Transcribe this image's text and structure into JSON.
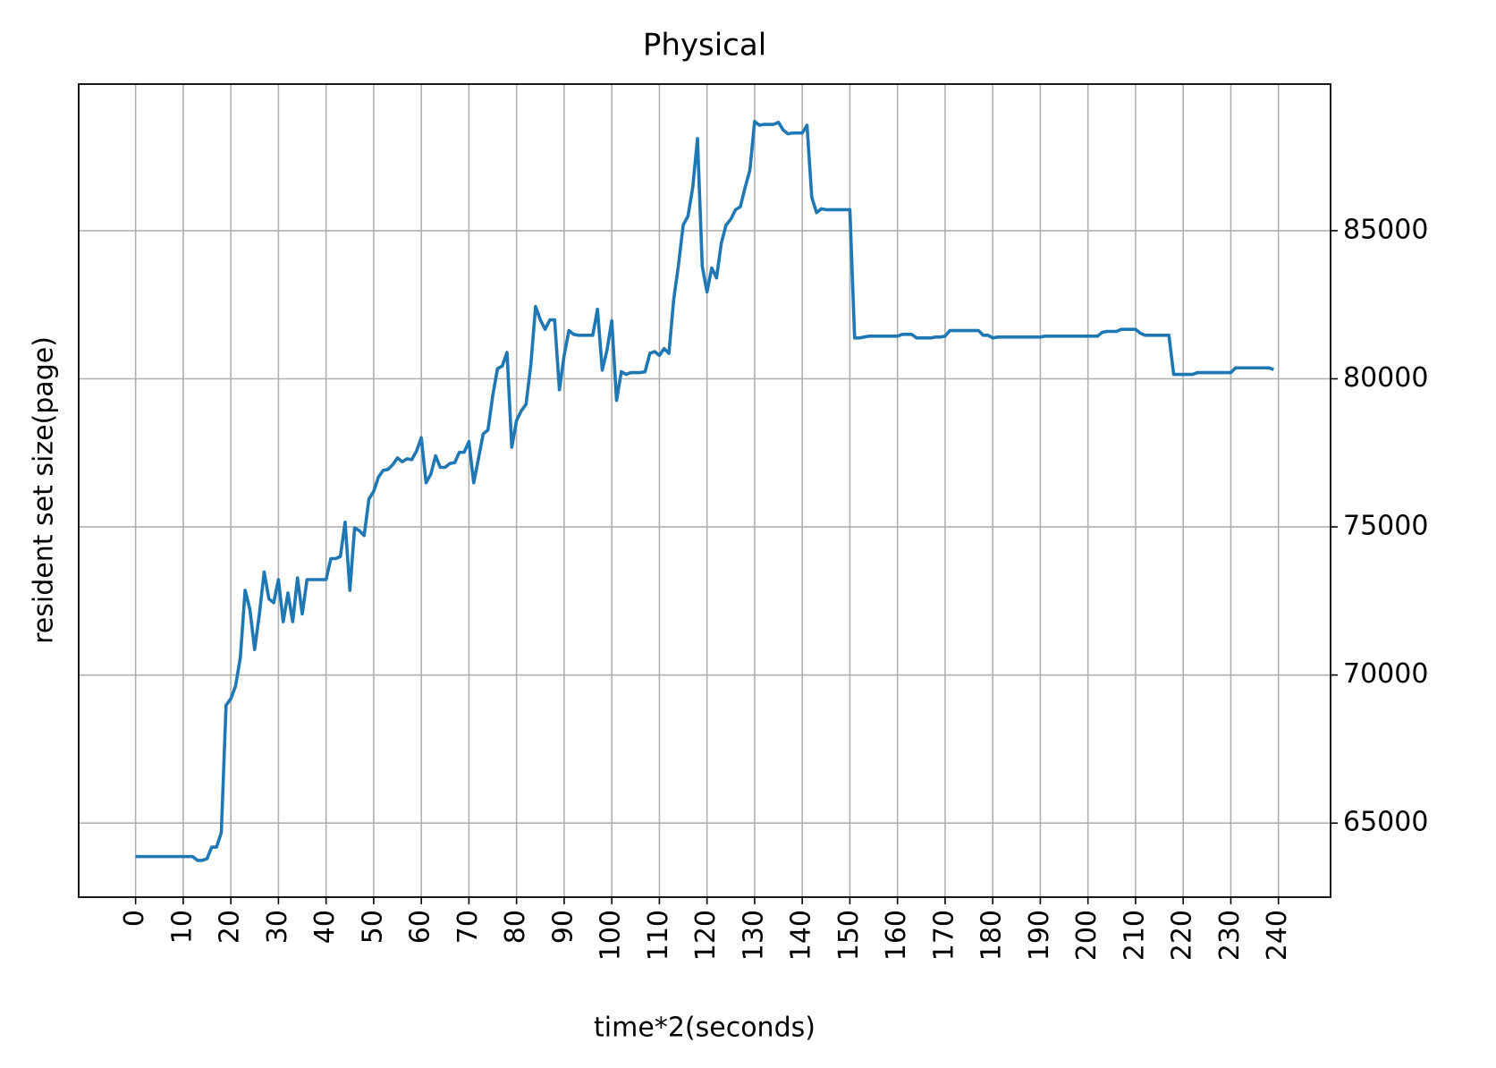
{
  "chart_data": {
    "type": "line",
    "title": "Physical",
    "x_label": "time*2(seconds)",
    "y_label": "resident set size(page)",
    "x": [
      0,
      1,
      2,
      3,
      4,
      5,
      6,
      7,
      8,
      9,
      10,
      11,
      12,
      13,
      14,
      15,
      16,
      17,
      18,
      19,
      20,
      21,
      22,
      23,
      24,
      25,
      26,
      27,
      28,
      29,
      30,
      31,
      32,
      33,
      34,
      35,
      36,
      37,
      38,
      39,
      40,
      41,
      42,
      43,
      44,
      45,
      46,
      47,
      48,
      49,
      50,
      51,
      52,
      53,
      54,
      55,
      56,
      57,
      58,
      59,
      60,
      61,
      62,
      63,
      64,
      65,
      66,
      67,
      68,
      69,
      70,
      71,
      72,
      73,
      74,
      75,
      76,
      77,
      78,
      79,
      80,
      81,
      82,
      83,
      84,
      85,
      86,
      87,
      88,
      89,
      90,
      91,
      92,
      93,
      94,
      95,
      96,
      97,
      98,
      99,
      100,
      101,
      102,
      103,
      104,
      105,
      106,
      107,
      108,
      109,
      110,
      111,
      112,
      113,
      114,
      115,
      116,
      117,
      118,
      119,
      120,
      121,
      122,
      123,
      124,
      125,
      126,
      127,
      128,
      129,
      130,
      131,
      132,
      133,
      134,
      135,
      136,
      137,
      138,
      139,
      140,
      141,
      142,
      143,
      144,
      145,
      146,
      147,
      148,
      149,
      150,
      151,
      152,
      153,
      154,
      155,
      156,
      157,
      158,
      159,
      160,
      161,
      162,
      163,
      164,
      165,
      166,
      167,
      168,
      169,
      170,
      171,
      172,
      173,
      174,
      175,
      176,
      177,
      178,
      179,
      180,
      181,
      182,
      183,
      184,
      185,
      186,
      187,
      188,
      189,
      190,
      191,
      192,
      193,
      194,
      195,
      196,
      197,
      198,
      199,
      200,
      201,
      202,
      203,
      204,
      205,
      206,
      207,
      208,
      209,
      210,
      211,
      212,
      213,
      214,
      215,
      216,
      217,
      218,
      219,
      220,
      221,
      222,
      223,
      224,
      225,
      226,
      227,
      228,
      229,
      230,
      231,
      232,
      233,
      234,
      235,
      236,
      237,
      238,
      239
    ],
    "series": [
      {
        "color": "#1f77b4",
        "values": [
          63870,
          63870,
          63870,
          63870,
          63870,
          63870,
          63870,
          63870,
          63870,
          63870,
          63870,
          63870,
          63870,
          63740,
          63740,
          63800,
          64190,
          64190,
          64680,
          68980,
          69200,
          69630,
          70600,
          72860,
          72220,
          70860,
          72060,
          73480,
          72570,
          72440,
          73220,
          71800,
          72770,
          71800,
          73280,
          72060,
          73220,
          73220,
          73220,
          73220,
          73220,
          73930,
          73930,
          74000,
          75160,
          72860,
          74970,
          74870,
          74710,
          75940,
          76200,
          76680,
          76910,
          76940,
          77100,
          77330,
          77200,
          77300,
          77270,
          77560,
          78010,
          76490,
          76780,
          77400,
          77010,
          77010,
          77140,
          77170,
          77520,
          77520,
          77880,
          76490,
          77300,
          78140,
          78270,
          79430,
          80340,
          80430,
          80890,
          77690,
          78590,
          78920,
          79140,
          80470,
          82440,
          81990,
          81670,
          81990,
          81990,
          79630,
          80790,
          81630,
          81500,
          81470,
          81470,
          81470,
          81470,
          82350,
          80290,
          80970,
          81960,
          79270,
          80240,
          80150,
          80210,
          80210,
          80210,
          80240,
          80860,
          80920,
          80790,
          81020,
          80860,
          82670,
          83830,
          85190,
          85490,
          86460,
          88110,
          83800,
          82930,
          83740,
          83410,
          84580,
          85190,
          85390,
          85710,
          85810,
          86460,
          87040,
          88690,
          88560,
          88590,
          88590,
          88590,
          88660,
          88400,
          88270,
          88300,
          88300,
          88300,
          88560,
          86130,
          85610,
          85740,
          85710,
          85710,
          85710,
          85710,
          85710,
          85710,
          81380,
          81380,
          81410,
          81440,
          81440,
          81440,
          81440,
          81440,
          81440,
          81440,
          81500,
          81500,
          81500,
          81380,
          81380,
          81380,
          81380,
          81410,
          81410,
          81440,
          81630,
          81630,
          81630,
          81630,
          81630,
          81630,
          81630,
          81470,
          81470,
          81380,
          81410,
          81410,
          81410,
          81410,
          81410,
          81410,
          81410,
          81410,
          81410,
          81410,
          81440,
          81440,
          81440,
          81440,
          81440,
          81440,
          81440,
          81440,
          81440,
          81440,
          81440,
          81440,
          81570,
          81600,
          81600,
          81600,
          81670,
          81670,
          81670,
          81670,
          81540,
          81470,
          81470,
          81470,
          81470,
          81470,
          81470,
          80150,
          80150,
          80150,
          80150,
          80150,
          80210,
          80210,
          80210,
          80210,
          80210,
          80210,
          80210,
          80210,
          80370,
          80370,
          80370,
          80370,
          80370,
          80370,
          80370,
          80370,
          80310
        ]
      }
    ],
    "xlim": [
      -11.95,
      250.95
    ],
    "xticks": [
      0,
      10,
      20,
      30,
      40,
      50,
      60,
      70,
      80,
      90,
      100,
      110,
      120,
      130,
      140,
      150,
      160,
      170,
      180,
      190,
      200,
      210,
      220,
      230,
      240
    ],
    "ylim": [
      62500,
      89950
    ],
    "yticks": [
      65000,
      70000,
      75000,
      80000,
      85000
    ],
    "y_axis_side": "right",
    "grid": true
  }
}
